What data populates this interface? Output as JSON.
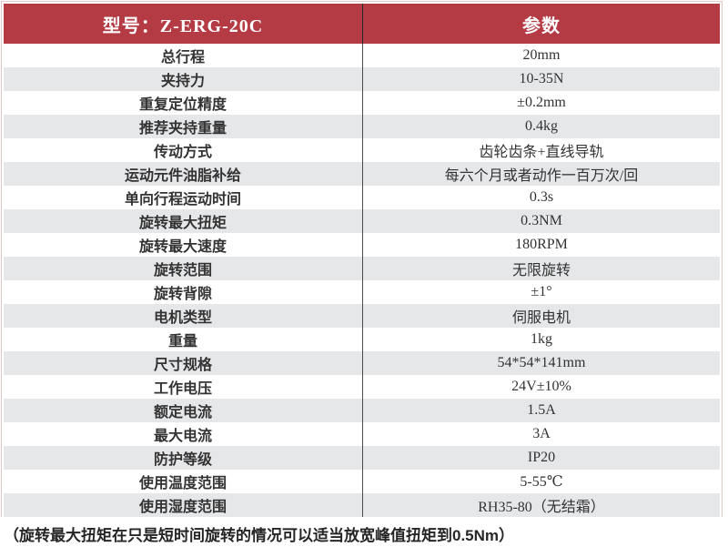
{
  "table": {
    "header": {
      "model_label": "型号：Z-ERG-20C",
      "param_label": "参数"
    },
    "rows": [
      {
        "label": "总行程",
        "value": "20mm"
      },
      {
        "label": "夹持力",
        "value": "10-35N"
      },
      {
        "label": "重复定位精度",
        "value": "±0.2mm"
      },
      {
        "label": "推荐夹持重量",
        "value": "0.4kg"
      },
      {
        "label": "传动方式",
        "value": "齿轮齿条+直线导轨"
      },
      {
        "label": "运动元件油脂补给",
        "value": "每六个月或者动作一百万次/回"
      },
      {
        "label": "单向行程运动时间",
        "value": "0.3s"
      },
      {
        "label": "旋转最大扭矩",
        "value": "0.3NM"
      },
      {
        "label": "旋转最大速度",
        "value": "180RPM"
      },
      {
        "label": "旋转范围",
        "value": "无限旋转"
      },
      {
        "label": "旋转背隙",
        "value": "±1°"
      },
      {
        "label": "电机类型",
        "value": "伺服电机"
      },
      {
        "label": "重量",
        "value": "1kg"
      },
      {
        "label": "尺寸规格",
        "value": "54*54*141mm"
      },
      {
        "label": "工作电压",
        "value": "24V±10%"
      },
      {
        "label": "额定电流",
        "value": "1.5A"
      },
      {
        "label": "最大电流",
        "value": "3A"
      },
      {
        "label": "防护等级",
        "value": "IP20"
      },
      {
        "label": "使用温度范围",
        "value": "5-55℃"
      },
      {
        "label": "使用湿度范围",
        "value": "RH35-80（无结霜）"
      }
    ]
  },
  "footnote": "（旋转最大扭矩在只是短时间旋转的情况可以适当放宽峰值扭矩到0.5Nm）",
  "colors": {
    "header_red": "#b43a44",
    "row_alt_gray": "#e6e7e9",
    "divider_dark": "#4a4a4a",
    "frame_pink": "#e9c3c6",
    "text_dark": "#333333",
    "footnote_color": "#262626"
  }
}
